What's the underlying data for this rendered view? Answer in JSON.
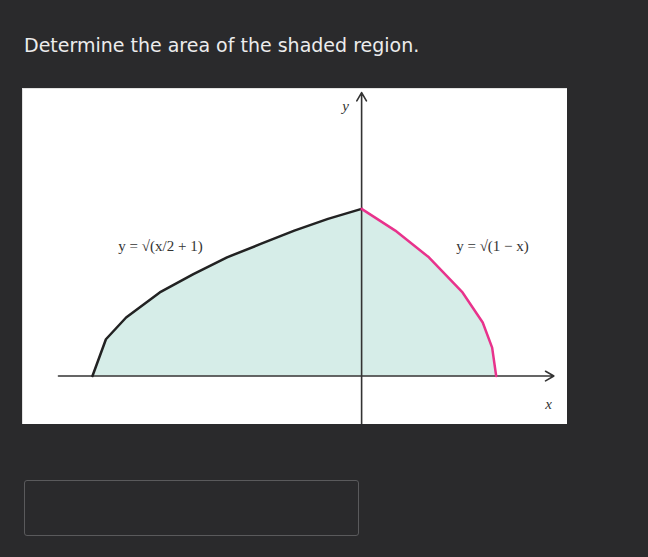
{
  "question": "Determine the area of the shaded region.",
  "chart_data": {
    "type": "area",
    "x_label": "x",
    "y_label": "y",
    "tick_labels": false,
    "xlim": [
      -2.52,
      1.53
    ],
    "ylim": [
      -0.29,
      1.72
    ],
    "series": [
      {
        "name": "y = √(x/2 + 1)",
        "color": "#222222",
        "x": [
          -2,
          -1.9,
          -1.75,
          -1.5,
          -1.25,
          -1,
          -0.75,
          -0.5,
          -0.25,
          0
        ],
        "values": [
          0,
          0.22,
          0.35,
          0.5,
          0.61,
          0.71,
          0.79,
          0.87,
          0.94,
          1
        ]
      },
      {
        "name": "y = √(1 − x)",
        "color": "#e8338c",
        "x": [
          0,
          0.25,
          0.5,
          0.75,
          0.9,
          0.97,
          1
        ],
        "values": [
          1,
          0.87,
          0.71,
          0.5,
          0.32,
          0.17,
          0
        ]
      }
    ]
  }
}
